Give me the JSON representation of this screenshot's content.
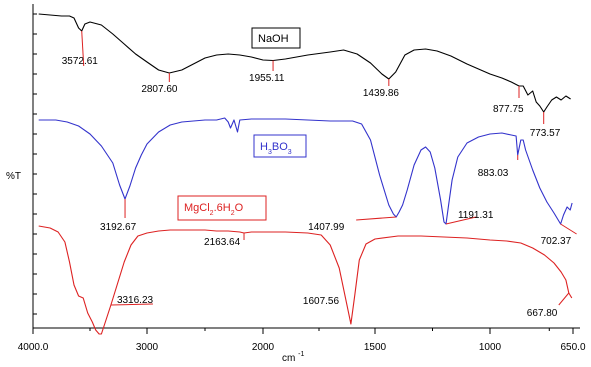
{
  "chart_data": {
    "type": "line",
    "ylabel": "%T",
    "xlabel": "cm",
    "xlabel_sup": "-1",
    "xlim": [
      4000.0,
      650.0
    ],
    "x_ticks": [
      "4000.0",
      "3000",
      "2000",
      "1500",
      "1000",
      "650.0"
    ],
    "x_tick_values": [
      4000,
      3000,
      2000,
      1500,
      1000,
      650
    ],
    "y_reversed_offset_note": "",
    "series": [
      {
        "name": "NaOH",
        "color": "#000000",
        "label_parts": [
          {
            "text": "NaOH",
            "sub": false
          }
        ],
        "points": [
          [
            3950,
            14
          ],
          [
            3850,
            15
          ],
          [
            3750,
            16
          ],
          [
            3680,
            16
          ],
          [
            3640,
            18
          ],
          [
            3600,
            28
          ],
          [
            3572.61,
            31
          ],
          [
            3545,
            24
          ],
          [
            3500,
            22
          ],
          [
            3400,
            25
          ],
          [
            3300,
            34
          ],
          [
            3200,
            44
          ],
          [
            3100,
            54
          ],
          [
            3000,
            62
          ],
          [
            2900,
            70
          ],
          [
            2807.6,
            73
          ],
          [
            2700,
            70
          ],
          [
            2600,
            64
          ],
          [
            2500,
            58
          ],
          [
            2400,
            55
          ],
          [
            2300,
            54
          ],
          [
            2200,
            55
          ],
          [
            2100,
            57
          ],
          [
            2000,
            60
          ],
          [
            1955.11,
            60.5
          ],
          [
            1900,
            59
          ],
          [
            1800,
            55
          ],
          [
            1700,
            52
          ],
          [
            1640,
            50
          ],
          [
            1580,
            54
          ],
          [
            1520,
            63
          ],
          [
            1470,
            74
          ],
          [
            1439.86,
            79
          ],
          [
            1410,
            72
          ],
          [
            1370,
            55
          ],
          [
            1330,
            50
          ],
          [
            1280,
            49
          ],
          [
            1230,
            51
          ],
          [
            1170,
            56
          ],
          [
            1100,
            64
          ],
          [
            1050,
            69
          ],
          [
            1000,
            74
          ],
          [
            950,
            78
          ],
          [
            910,
            82
          ],
          [
            877.75,
            86
          ],
          [
            860,
            86
          ],
          [
            840,
            95
          ],
          [
            820,
            91
          ],
          [
            805,
            102
          ],
          [
            790,
            106
          ],
          [
            773.57,
            112
          ],
          [
            760,
            107
          ],
          [
            740,
            100
          ],
          [
            720,
            97
          ],
          [
            700,
            100
          ],
          [
            680,
            96
          ],
          [
            660,
            99
          ]
        ],
        "annotations": [
          {
            "x": 3572.61,
            "label": "3572.61"
          },
          {
            "x": 2807.6,
            "label": "2807.60"
          },
          {
            "x": 1955.11,
            "label": "1955.11"
          },
          {
            "x": 1439.86,
            "label": "1439.86"
          },
          {
            "x": 877.75,
            "label": "877.75"
          },
          {
            "x": 773.57,
            "label": "773.57"
          }
        ]
      },
      {
        "name": "H3BO3",
        "color": "#3333cc",
        "label_parts": [
          {
            "text": "H",
            "sub": false
          },
          {
            "text": "3",
            "sub": true
          },
          {
            "text": "BO",
            "sub": false
          },
          {
            "text": "3",
            "sub": true
          }
        ],
        "points": [
          [
            3950,
            120
          ],
          [
            3800,
            120
          ],
          [
            3700,
            122
          ],
          [
            3600,
            126
          ],
          [
            3500,
            134
          ],
          [
            3400,
            146
          ],
          [
            3300,
            163
          ],
          [
            3240,
            185
          ],
          [
            3192.67,
            199
          ],
          [
            3150,
            186
          ],
          [
            3100,
            168
          ],
          [
            3050,
            155
          ],
          [
            3000,
            144
          ],
          [
            2900,
            132
          ],
          [
            2800,
            125
          ],
          [
            2700,
            122
          ],
          [
            2600,
            121
          ],
          [
            2500,
            120
          ],
          [
            2400,
            120
          ],
          [
            2330,
            118
          ],
          [
            2300,
            122
          ],
          [
            2280,
            128
          ],
          [
            2250,
            120
          ],
          [
            2220,
            132
          ],
          [
            2200,
            120
          ],
          [
            2100,
            119
          ],
          [
            2000,
            119
          ],
          [
            1900,
            119
          ],
          [
            1800,
            120
          ],
          [
            1700,
            121
          ],
          [
            1600,
            121
          ],
          [
            1560,
            124
          ],
          [
            1520,
            140
          ],
          [
            1480,
            175
          ],
          [
            1440,
            205
          ],
          [
            1420,
            214
          ],
          [
            1407.99,
            217
          ],
          [
            1395,
            212
          ],
          [
            1380,
            205
          ],
          [
            1360,
            190
          ],
          [
            1330,
            165
          ],
          [
            1300,
            150
          ],
          [
            1280,
            147
          ],
          [
            1260,
            152
          ],
          [
            1240,
            168
          ],
          [
            1215,
            200
          ],
          [
            1200,
            222
          ],
          [
            1191.31,
            224
          ],
          [
            1180,
            205
          ],
          [
            1165,
            180
          ],
          [
            1140,
            157
          ],
          [
            1100,
            143
          ],
          [
            1050,
            137
          ],
          [
            1000,
            134
          ],
          [
            950,
            133
          ],
          [
            910,
            135
          ],
          [
            890,
            136
          ],
          [
            883.03,
            155
          ],
          [
            870,
            140
          ],
          [
            860,
            140
          ],
          [
            850,
            150
          ],
          [
            820,
            170
          ],
          [
            790,
            188
          ],
          [
            760,
            202
          ],
          [
            730,
            213
          ],
          [
            710,
            221
          ],
          [
            702.37,
            224
          ],
          [
            690,
            215
          ],
          [
            675,
            207
          ],
          [
            662,
            210
          ],
          [
            654,
            203
          ]
        ],
        "annotations": [
          {
            "x": 3192.67,
            "label": "3192.67"
          },
          {
            "x": 1407.99,
            "label": "1407.99"
          },
          {
            "x": 1191.31,
            "label": "1191.31"
          },
          {
            "x": 883.03,
            "label": "883.03"
          },
          {
            "x": 702.37,
            "label": "702.37"
          }
        ]
      },
      {
        "name": "MgCl2.6H2O",
        "color": "#dd2222",
        "label_parts": [
          {
            "text": "MgCl",
            "sub": false
          },
          {
            "text": "2",
            "sub": true
          },
          {
            "text": ".6H",
            "sub": false
          },
          {
            "text": "2",
            "sub": true
          },
          {
            "text": "O",
            "sub": false
          }
        ],
        "points": [
          [
            3950,
            226
          ],
          [
            3850,
            228
          ],
          [
            3780,
            232
          ],
          [
            3720,
            242
          ],
          [
            3680,
            262
          ],
          [
            3640,
            285
          ],
          [
            3600,
            296
          ],
          [
            3560,
            298
          ],
          [
            3520,
            313
          ],
          [
            3480,
            322
          ],
          [
            3450,
            330
          ],
          [
            3420,
            334
          ],
          [
            3400,
            334
          ],
          [
            3360,
            320
          ],
          [
            3316.23,
            305
          ],
          [
            3260,
            284
          ],
          [
            3200,
            262
          ],
          [
            3140,
            245
          ],
          [
            3080,
            236
          ],
          [
            3000,
            233
          ],
          [
            2900,
            231
          ],
          [
            2800,
            230
          ],
          [
            2700,
            230
          ],
          [
            2600,
            230
          ],
          [
            2500,
            230
          ],
          [
            2400,
            231
          ],
          [
            2300,
            231
          ],
          [
            2200,
            232
          ],
          [
            2163.64,
            233
          ],
          [
            2100,
            232
          ],
          [
            2000,
            232
          ],
          [
            1900,
            232
          ],
          [
            1800,
            233
          ],
          [
            1740,
            235
          ],
          [
            1700,
            245
          ],
          [
            1660,
            268
          ],
          [
            1630,
            300
          ],
          [
            1607.56,
            324
          ],
          [
            1590,
            295
          ],
          [
            1570,
            260
          ],
          [
            1540,
            244
          ],
          [
            1500,
            239
          ],
          [
            1400,
            236
          ],
          [
            1300,
            236
          ],
          [
            1200,
            237
          ],
          [
            1100,
            238
          ],
          [
            1000,
            240
          ],
          [
            930,
            241
          ],
          [
            870,
            243
          ],
          [
            820,
            248
          ],
          [
            770,
            255
          ],
          [
            730,
            263
          ],
          [
            700,
            272
          ],
          [
            680,
            280
          ],
          [
            667.8,
            293
          ],
          [
            655,
            298
          ]
        ],
        "annotations": [
          {
            "x": 3316.23,
            "label": "3316.23"
          },
          {
            "x": 2163.64,
            "label": "2163.64"
          },
          {
            "x": 1607.56,
            "label": "1607.56"
          },
          {
            "x": 667.8,
            "label": "667.80"
          }
        ]
      }
    ]
  }
}
